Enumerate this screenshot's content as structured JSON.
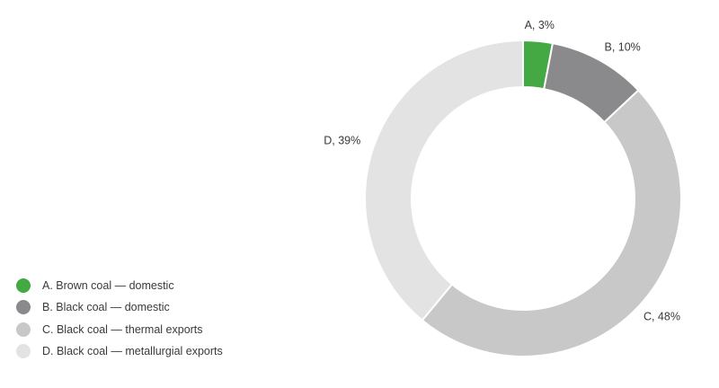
{
  "chart_data": {
    "type": "pie",
    "subtype": "donut",
    "legend_position": "bottom-left",
    "slices": [
      {
        "key": "A",
        "label": "A. Brown coal — domestic",
        "value": 3,
        "value_label": "A, 3%",
        "color": "#44a843"
      },
      {
        "key": "B",
        "label": "B. Black coal — domestic",
        "value": 10,
        "value_label": "B, 10%",
        "color": "#8a898c"
      },
      {
        "key": "C",
        "label": "C. Black coal — thermal exports",
        "value": 48,
        "value_label": "C, 48%",
        "color": "#c8c8c8"
      },
      {
        "key": "D",
        "label": "D. Black coal — metallurgial exports",
        "value": 39,
        "value_label": "D, 39%",
        "color": "#e3e3e3"
      }
    ]
  }
}
